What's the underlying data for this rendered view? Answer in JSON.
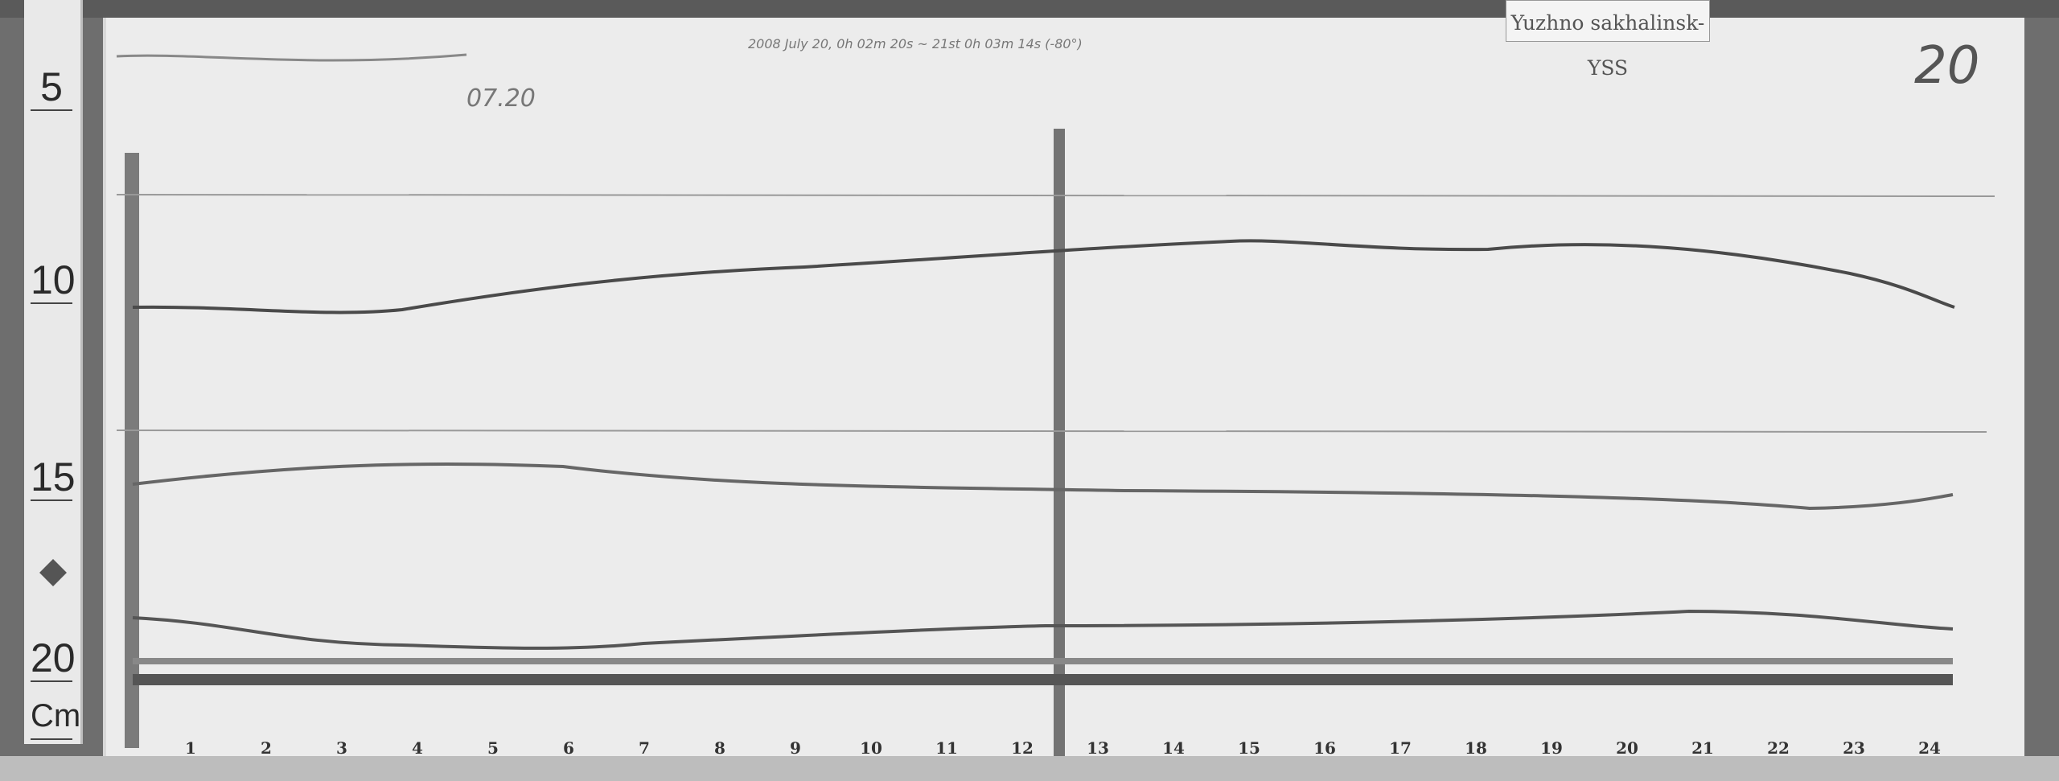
{
  "station_label": "Yuzhno sakhalinsk-YSS",
  "record": {
    "date_code": "07.20",
    "sheet_number": "20",
    "header_note": "2008 July 20, 0h 02m 20s ~ 21st 0h 03m 14s (-80°)"
  },
  "ruler": {
    "labels": [
      "5",
      "10",
      "15",
      "20",
      "Cm"
    ],
    "marker_icon": "diamond-icon"
  },
  "hours": [
    "1",
    "2",
    "3",
    "4",
    "5",
    "6",
    "7",
    "8",
    "9",
    "10",
    "11",
    "12",
    "13",
    "14",
    "15",
    "16",
    "17",
    "18",
    "19",
    "20",
    "21",
    "22",
    "23",
    "24"
  ],
  "colors": {
    "paper": "#ececec",
    "trace": "#4a4a4a",
    "background": "#6e6e6e"
  }
}
